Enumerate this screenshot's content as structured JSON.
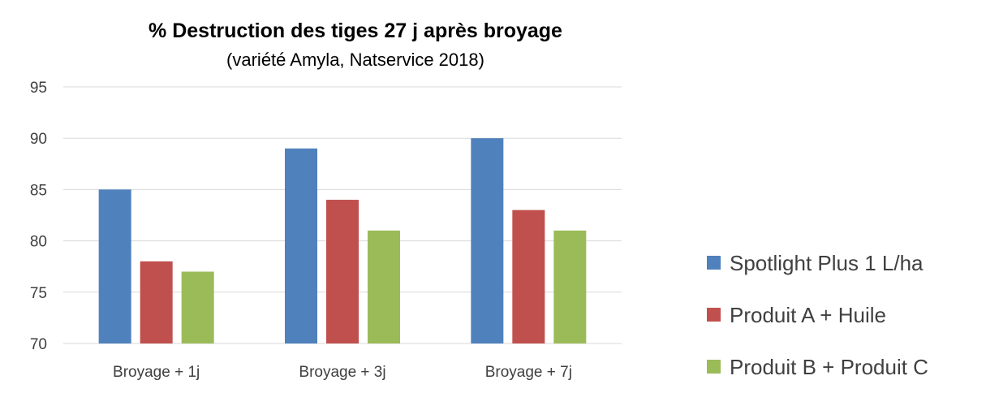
{
  "chart_data": {
    "type": "bar",
    "title": "% Destruction des tiges 27 j après broyage",
    "subtitle": "(variété Amyla, Natservice 2018)",
    "categories": [
      "Broyage + 1j",
      "Broyage + 3j",
      "Broyage + 7j"
    ],
    "series": [
      {
        "name": "Spotlight Plus 1 L/ha",
        "color": "#4f81bd",
        "values": [
          85,
          89,
          90
        ]
      },
      {
        "name": "Produit A + Huile",
        "color": "#c0504d",
        "values": [
          78,
          84,
          83
        ]
      },
      {
        "name": "Produit B + Produit C",
        "color": "#9bbb59",
        "values": [
          77,
          81,
          81
        ]
      }
    ],
    "ylim": [
      70,
      95
    ],
    "yticks": [
      70,
      75,
      80,
      85,
      90,
      95
    ],
    "grid": true,
    "legend_position": "right",
    "colors": {
      "grid": "#d9d9d9",
      "axis_text": "#404040",
      "title": "#000000"
    }
  }
}
